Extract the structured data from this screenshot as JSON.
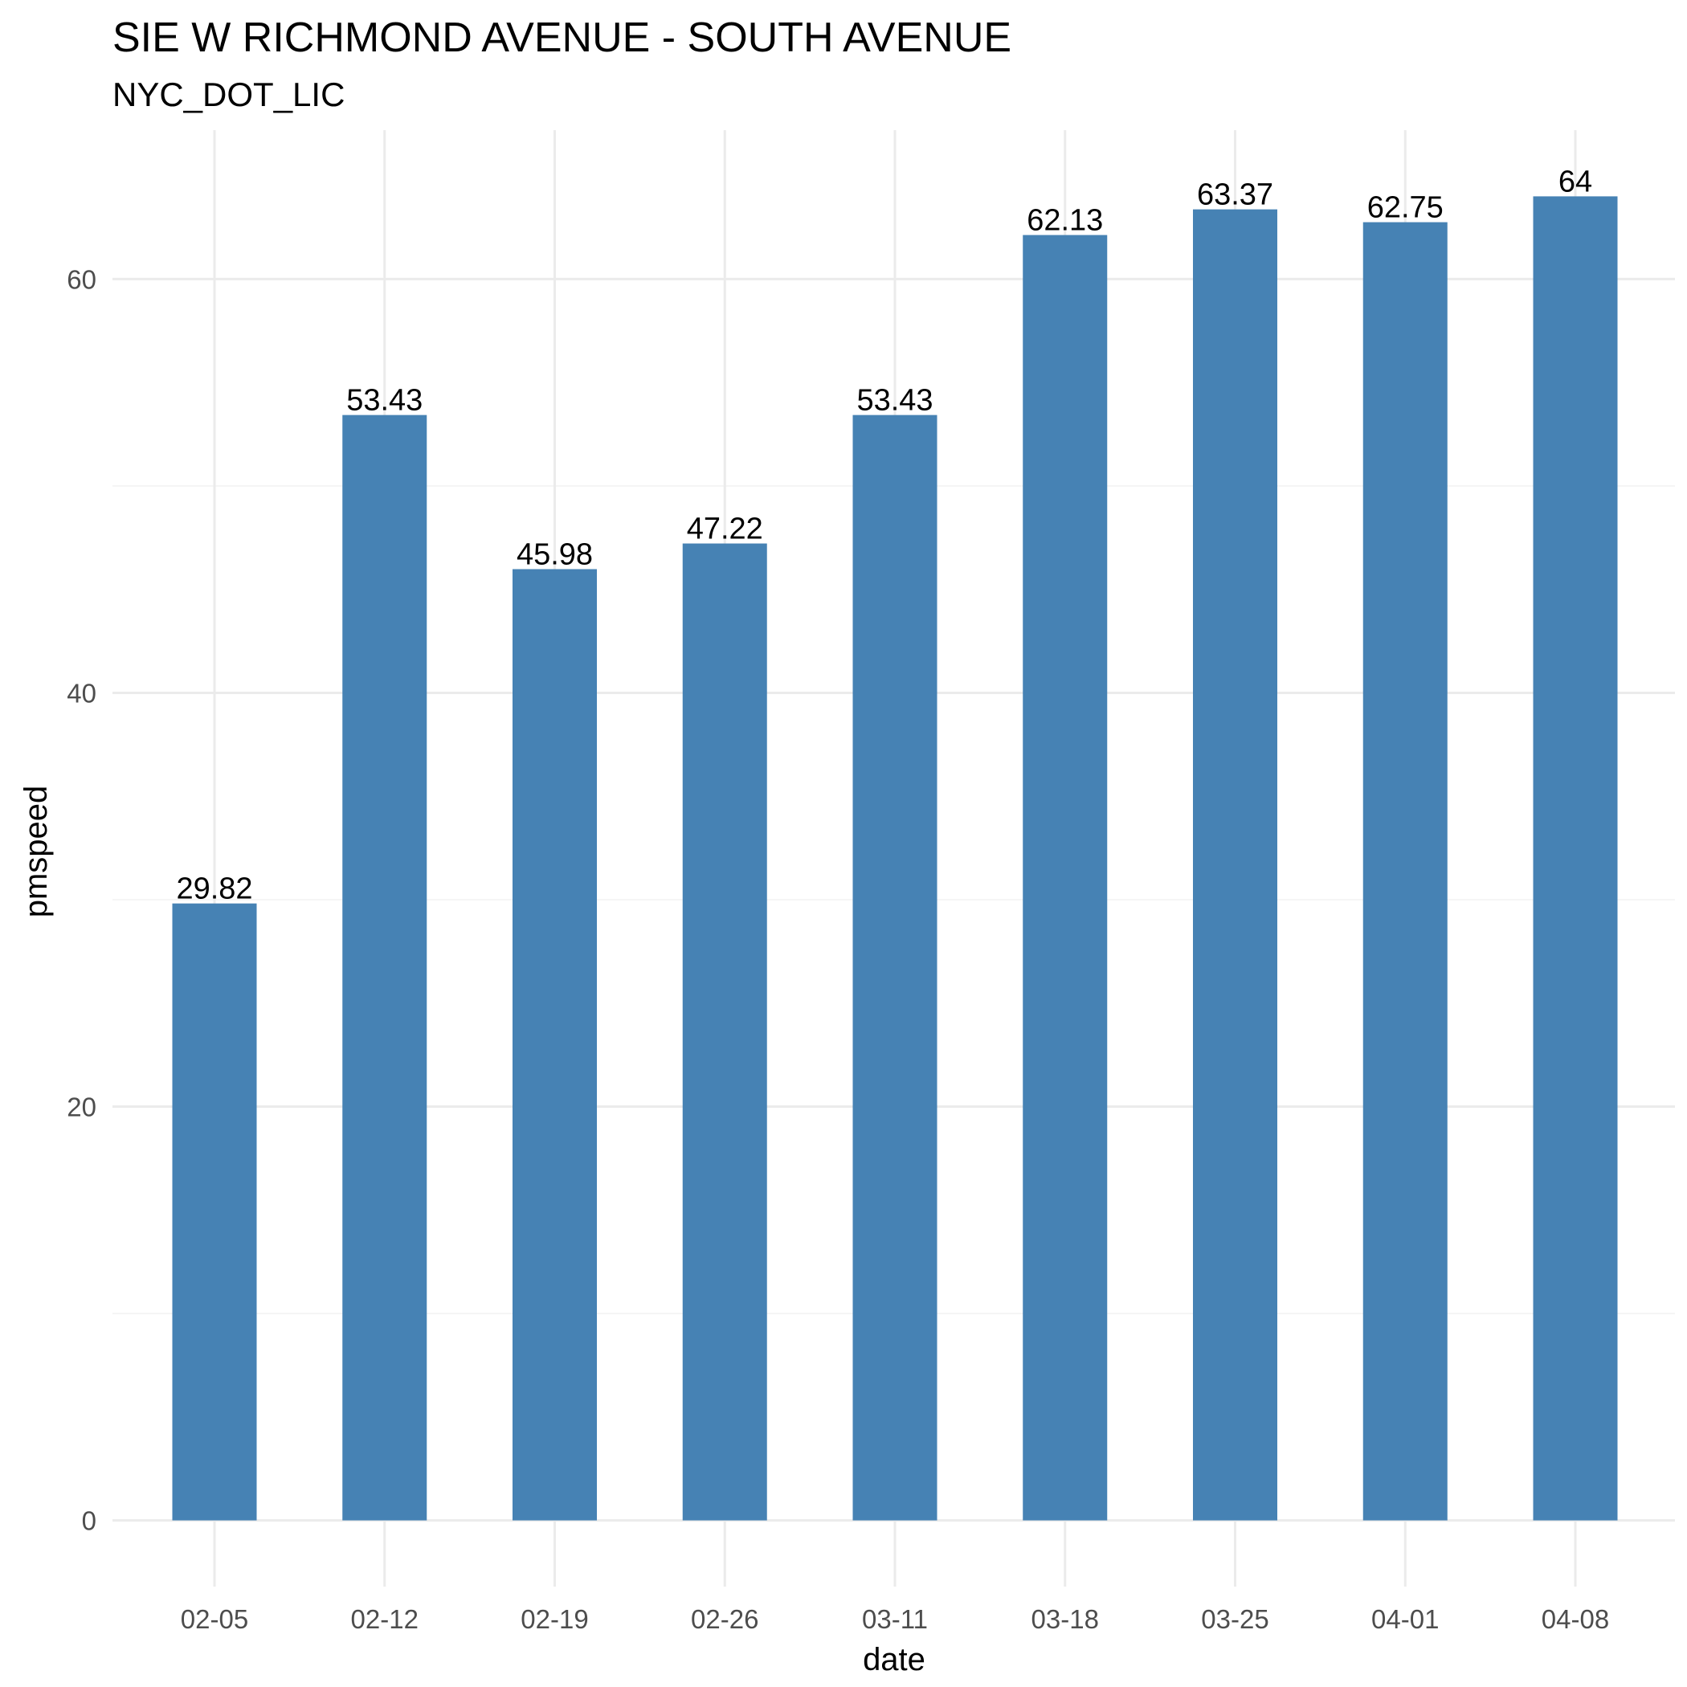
{
  "chart_data": {
    "type": "bar",
    "title": "SIE W RICHMOND AVENUE - SOUTH AVENUE",
    "subtitle": "NYC_DOT_LIC",
    "xlabel": "date",
    "ylabel": "pmspeed",
    "categories": [
      "02-05",
      "02-12",
      "02-19",
      "02-26",
      "03-11",
      "03-18",
      "03-25",
      "04-01",
      "04-08"
    ],
    "values": [
      29.82,
      53.43,
      45.98,
      47.22,
      53.43,
      62.13,
      63.37,
      62.75,
      64
    ],
    "data_labels": [
      "29.82",
      "53.43",
      "45.98",
      "47.22",
      "53.43",
      "62.13",
      "63.37",
      "62.75",
      "64"
    ],
    "yticks": [
      0,
      20,
      40,
      60
    ],
    "ylim": [
      -3.2,
      67.2
    ],
    "grid": true,
    "bar_color": "#4682b4"
  }
}
